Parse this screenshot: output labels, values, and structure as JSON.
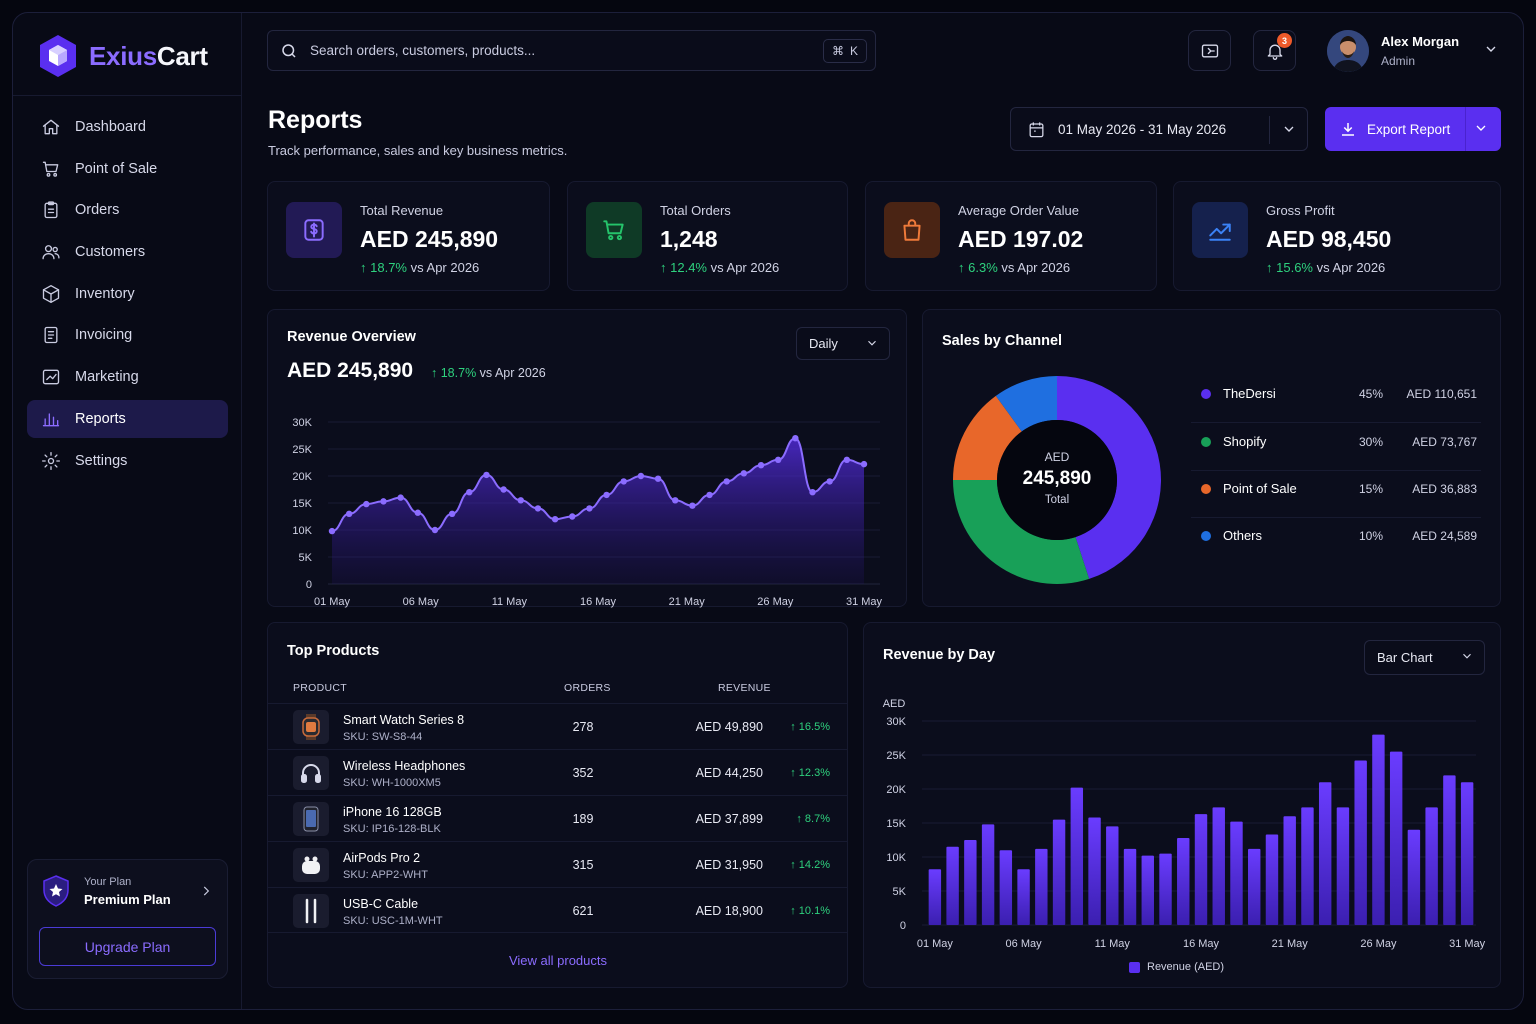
{
  "brand": {
    "name_part1": "Exius",
    "name_part2": "Cart"
  },
  "nav": [
    {
      "label": "Dashboard",
      "icon": "home-icon"
    },
    {
      "label": "Point of Sale",
      "icon": "cart-icon"
    },
    {
      "label": "Orders",
      "icon": "clipboard-icon"
    },
    {
      "label": "Customers",
      "icon": "users-icon"
    },
    {
      "label": "Inventory",
      "icon": "box-icon"
    },
    {
      "label": "Invoicing",
      "icon": "invoice-icon"
    },
    {
      "label": "Marketing",
      "icon": "marketing-icon"
    },
    {
      "label": "Reports",
      "icon": "bar-chart-icon",
      "active": true
    },
    {
      "label": "Settings",
      "icon": "gear-icon"
    }
  ],
  "plan": {
    "caption": "Your Plan",
    "name": "Premium Plan",
    "upgrade_label": "Upgrade Plan"
  },
  "search": {
    "placeholder": "Search orders, customers, products...",
    "shortcut_symbol": "⌘",
    "shortcut_key": "K"
  },
  "notifications": {
    "count": "3"
  },
  "user": {
    "name": "Alex Morgan",
    "role": "Admin"
  },
  "page": {
    "title": "Reports",
    "subtitle": "Track performance, sales and key business metrics."
  },
  "date_range": {
    "value": "01 May 2026 - 31 May 2026"
  },
  "export": {
    "label": "Export Report"
  },
  "kpis": [
    {
      "label": "Total Revenue",
      "value": "AED 245,890",
      "delta": "18.7%",
      "compare": "vs Apr 2026",
      "icon": "dollar-icon",
      "color": "#7b5cff",
      "bg": "#221a55"
    },
    {
      "label": "Total Orders",
      "value": "1,248",
      "delta": "12.4%",
      "compare": "vs Apr 2026",
      "icon": "cart-icon",
      "color": "#25c46b",
      "bg": "#0f3a26"
    },
    {
      "label": "Average Order Value",
      "value": "AED 197.02",
      "delta": "6.3%",
      "compare": "vs Apr 2026",
      "icon": "bag-icon",
      "color": "#ef7a3a",
      "bg": "#4a2414"
    },
    {
      "label": "Gross Profit",
      "value": "AED 98,450",
      "delta": "15.6%",
      "compare": "vs Apr 2026",
      "icon": "trend-up-icon",
      "color": "#3b82f6",
      "bg": "#15214d"
    }
  ],
  "revenue_overview": {
    "title": "Revenue Overview",
    "value": "AED 245,890",
    "delta": "18.7%",
    "compare": "vs Apr 2026",
    "period_select": "Daily"
  },
  "sales_by_channel": {
    "title": "Sales by Channel",
    "center_top": "AED",
    "center_value": "245,890",
    "center_bottom": "Total",
    "channels": [
      {
        "name": "TheDersi",
        "pct": "45%",
        "value": "AED 110,651",
        "color": "#5a2ff0",
        "share": 45
      },
      {
        "name": "Shopify",
        "pct": "30%",
        "value": "AED 73,767",
        "color": "#18a058",
        "share": 30
      },
      {
        "name": "Point of Sale",
        "pct": "15%",
        "value": "AED 36,883",
        "color": "#e8672a",
        "share": 15
      },
      {
        "name": "Others",
        "pct": "10%",
        "value": "AED 24,589",
        "color": "#1f6fe0",
        "share": 10
      }
    ]
  },
  "top_products": {
    "title": "Top Products",
    "headers": {
      "product": "PRODUCT",
      "orders": "ORDERS",
      "revenue": "REVENUE"
    },
    "rows": [
      {
        "name": "Smart Watch Series 8",
        "sku": "SKU: SW-S8-44",
        "orders": "278",
        "revenue": "AED 49,890",
        "delta": "16.5%",
        "icon": "watch-icon"
      },
      {
        "name": "Wireless Headphones",
        "sku": "SKU: WH-1000XM5",
        "orders": "352",
        "revenue": "AED 44,250",
        "delta": "12.3%",
        "icon": "headphones-icon"
      },
      {
        "name": "iPhone 16 128GB",
        "sku": "SKU: IP16-128-BLK",
        "orders": "189",
        "revenue": "AED 37,899",
        "delta": "8.7%",
        "icon": "phone-icon"
      },
      {
        "name": "AirPods Pro 2",
        "sku": "SKU: APP2-WHT",
        "orders": "315",
        "revenue": "AED 31,950",
        "delta": "14.2%",
        "icon": "earbuds-icon"
      },
      {
        "name": "USB-C Cable",
        "sku": "SKU: USC-1M-WHT",
        "orders": "621",
        "revenue": "AED 18,900",
        "delta": "10.1%",
        "icon": "cable-icon"
      }
    ],
    "view_all": "View all products"
  },
  "revenue_by_day": {
    "title": "Revenue by Day",
    "chart_select": "Bar Chart",
    "legend": "Revenue (AED)"
  },
  "chart_data": [
    {
      "type": "area",
      "title": "Revenue Overview",
      "xlabel": "",
      "ylabel": "",
      "x_ticks": [
        "01 May",
        "06 May",
        "11 May",
        "16 May",
        "21 May",
        "26 May",
        "31 May"
      ],
      "y_ticks": [
        "0",
        "5K",
        "10K",
        "15K",
        "20K",
        "25K",
        "30K"
      ],
      "ylim": [
        0,
        30000
      ],
      "grid": true,
      "color": "#7b5cff",
      "series": [
        {
          "values": [
            9800,
            13000,
            14800,
            15300,
            16000,
            13200,
            10000,
            13000,
            17000,
            20200,
            17500,
            15500,
            14000,
            12000,
            12500,
            14000,
            16500,
            19000,
            20000,
            19500,
            15500,
            14500,
            16500,
            19000,
            20500,
            22000,
            23000,
            27000,
            17000,
            19000,
            23000,
            22200
          ]
        }
      ]
    },
    {
      "type": "pie",
      "title": "Sales by Channel",
      "categories": [
        "TheDersi",
        "Shopify",
        "Point of Sale",
        "Others"
      ],
      "values": [
        45,
        30,
        15,
        10
      ]
    },
    {
      "type": "bar",
      "title": "Revenue by Day",
      "ylabel": "AED",
      "x_ticks": [
        "01 May",
        "06 May",
        "11 May",
        "16 May",
        "21 May",
        "26 May",
        "31 May"
      ],
      "y_ticks": [
        "0",
        "5K",
        "10K",
        "15K",
        "20K",
        "25K",
        "30K"
      ],
      "ylim": [
        0,
        30000
      ],
      "legend": "bottom",
      "color": "#5a2ff0",
      "series": [
        {
          "name": "Revenue (AED)",
          "values": [
            8200,
            11500,
            12500,
            14800,
            11000,
            8200,
            11200,
            15500,
            20200,
            15800,
            14500,
            11200,
            10200,
            10500,
            12800,
            16300,
            17300,
            15200,
            11200,
            13300,
            16000,
            17300,
            21000,
            17300,
            24200,
            28000,
            25500,
            14000,
            17300,
            22000,
            21000
          ]
        }
      ]
    }
  ]
}
